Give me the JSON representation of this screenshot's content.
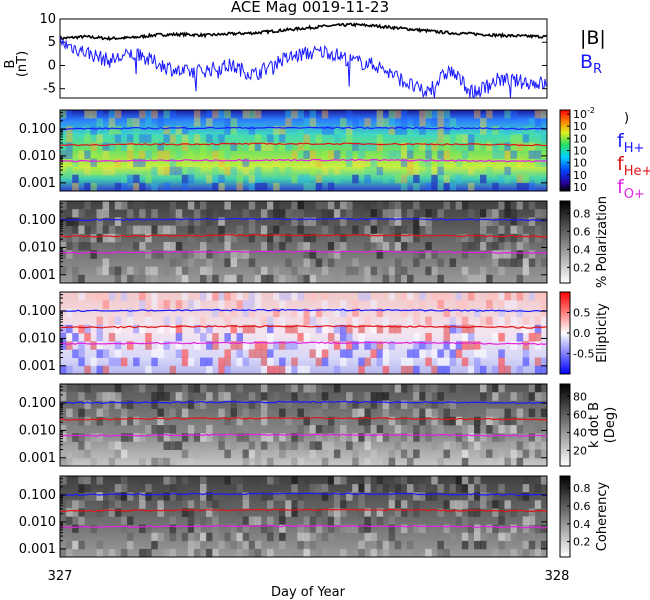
{
  "chart_data": [
    {
      "type": "line",
      "title": "ACE Mag 0019-11-23",
      "ylabel": "B",
      "yunit": "(nT)",
      "ylim": [
        -7,
        10
      ],
      "yticks": [
        "10",
        "5",
        "0",
        "-5"
      ],
      "series": [
        {
          "name": "|B|",
          "color": "#000000",
          "x": [
            327.0,
            327.05,
            327.1,
            327.15,
            327.2,
            327.25,
            327.3,
            327.35,
            327.4,
            327.45,
            327.5,
            327.55,
            327.6,
            327.65,
            327.7,
            327.75,
            327.8,
            327.85,
            327.9,
            327.95,
            328.0
          ],
          "values": [
            5.8,
            6.2,
            5.8,
            6.0,
            6.6,
            6.7,
            6.5,
            6.8,
            7.0,
            7.5,
            8.0,
            8.5,
            8.8,
            8.5,
            8.0,
            7.5,
            7.0,
            6.8,
            6.5,
            6.3,
            6.2
          ]
        },
        {
          "name": "B",
          "sub": "R",
          "color": "#1a1aff",
          "x": [
            327.0,
            327.05,
            327.1,
            327.15,
            327.2,
            327.25,
            327.3,
            327.35,
            327.4,
            327.45,
            327.5,
            327.55,
            327.6,
            327.65,
            327.7,
            327.75,
            327.8,
            327.85,
            327.9,
            327.95,
            328.0
          ],
          "values": [
            5.0,
            3.0,
            1.0,
            2.5,
            0.5,
            -1.5,
            -1.0,
            0.0,
            -2.0,
            1.0,
            2.5,
            3.0,
            1.0,
            0.0,
            -3.0,
            -6.0,
            -1.0,
            -6.0,
            -3.0,
            -3.5,
            -4.0
          ]
        }
      ]
    },
    {
      "type": "heatmap",
      "yscale": "log",
      "ylim": [
        0.0005,
        0.5
      ],
      "yticks": [
        "0.100",
        "0.010",
        "0.001"
      ],
      "colorbar": {
        "ticks": [
          "10",
          "10",
          "10",
          "10",
          "10",
          "10",
          "10"
        ],
        "exponents": [
          "-2",
          "",
          "",
          "",
          "",
          "",
          ""
        ],
        "label": ")"
      },
      "series": [
        {
          "name": "f",
          "sub": "H+",
          "color": "#1a1aff",
          "values": [
            0.1,
            0.11,
            0.1
          ]
        },
        {
          "name": "f",
          "sub": "He+",
          "color": "#e01515",
          "values": [
            0.025,
            0.028,
            0.025
          ]
        },
        {
          "name": "f",
          "sub": "O+",
          "color": "#e020e0",
          "values": [
            0.0063,
            0.007,
            0.0063
          ]
        }
      ]
    },
    {
      "type": "heatmap",
      "yscale": "log",
      "ylim": [
        0.0005,
        0.5
      ],
      "yticks": [
        "0.100",
        "0.010",
        "0.001"
      ],
      "colorbar": {
        "ticks": [
          "0.8",
          "0.6",
          "0.4",
          "0.2"
        ],
        "label": "% Polarization"
      }
    },
    {
      "type": "heatmap",
      "yscale": "log",
      "ylim": [
        0.0005,
        0.5
      ],
      "yticks": [
        "0.100",
        "0.010",
        "0.001"
      ],
      "colorbar": {
        "ticks": [
          "0.5",
          "0.0",
          "-0.5"
        ],
        "label": "Ellipticity"
      }
    },
    {
      "type": "heatmap",
      "yscale": "log",
      "ylim": [
        0.0005,
        0.5
      ],
      "yticks": [
        "0.100",
        "0.010",
        "0.001"
      ],
      "colorbar": {
        "ticks": [
          "80",
          "60",
          "40",
          "20"
        ],
        "label": "k dot B",
        "label2": "(Deg)"
      }
    },
    {
      "type": "heatmap",
      "yscale": "log",
      "ylim": [
        0.0005,
        0.5
      ],
      "yticks": [
        "0.100",
        "0.010",
        "0.001"
      ],
      "colorbar": {
        "ticks": [
          "0.8",
          "0.6",
          "0.4",
          "0.2"
        ],
        "label": "Coherency"
      }
    }
  ],
  "xaxis": {
    "ticks": [
      "327",
      "328"
    ],
    "label": "Day of Year"
  }
}
